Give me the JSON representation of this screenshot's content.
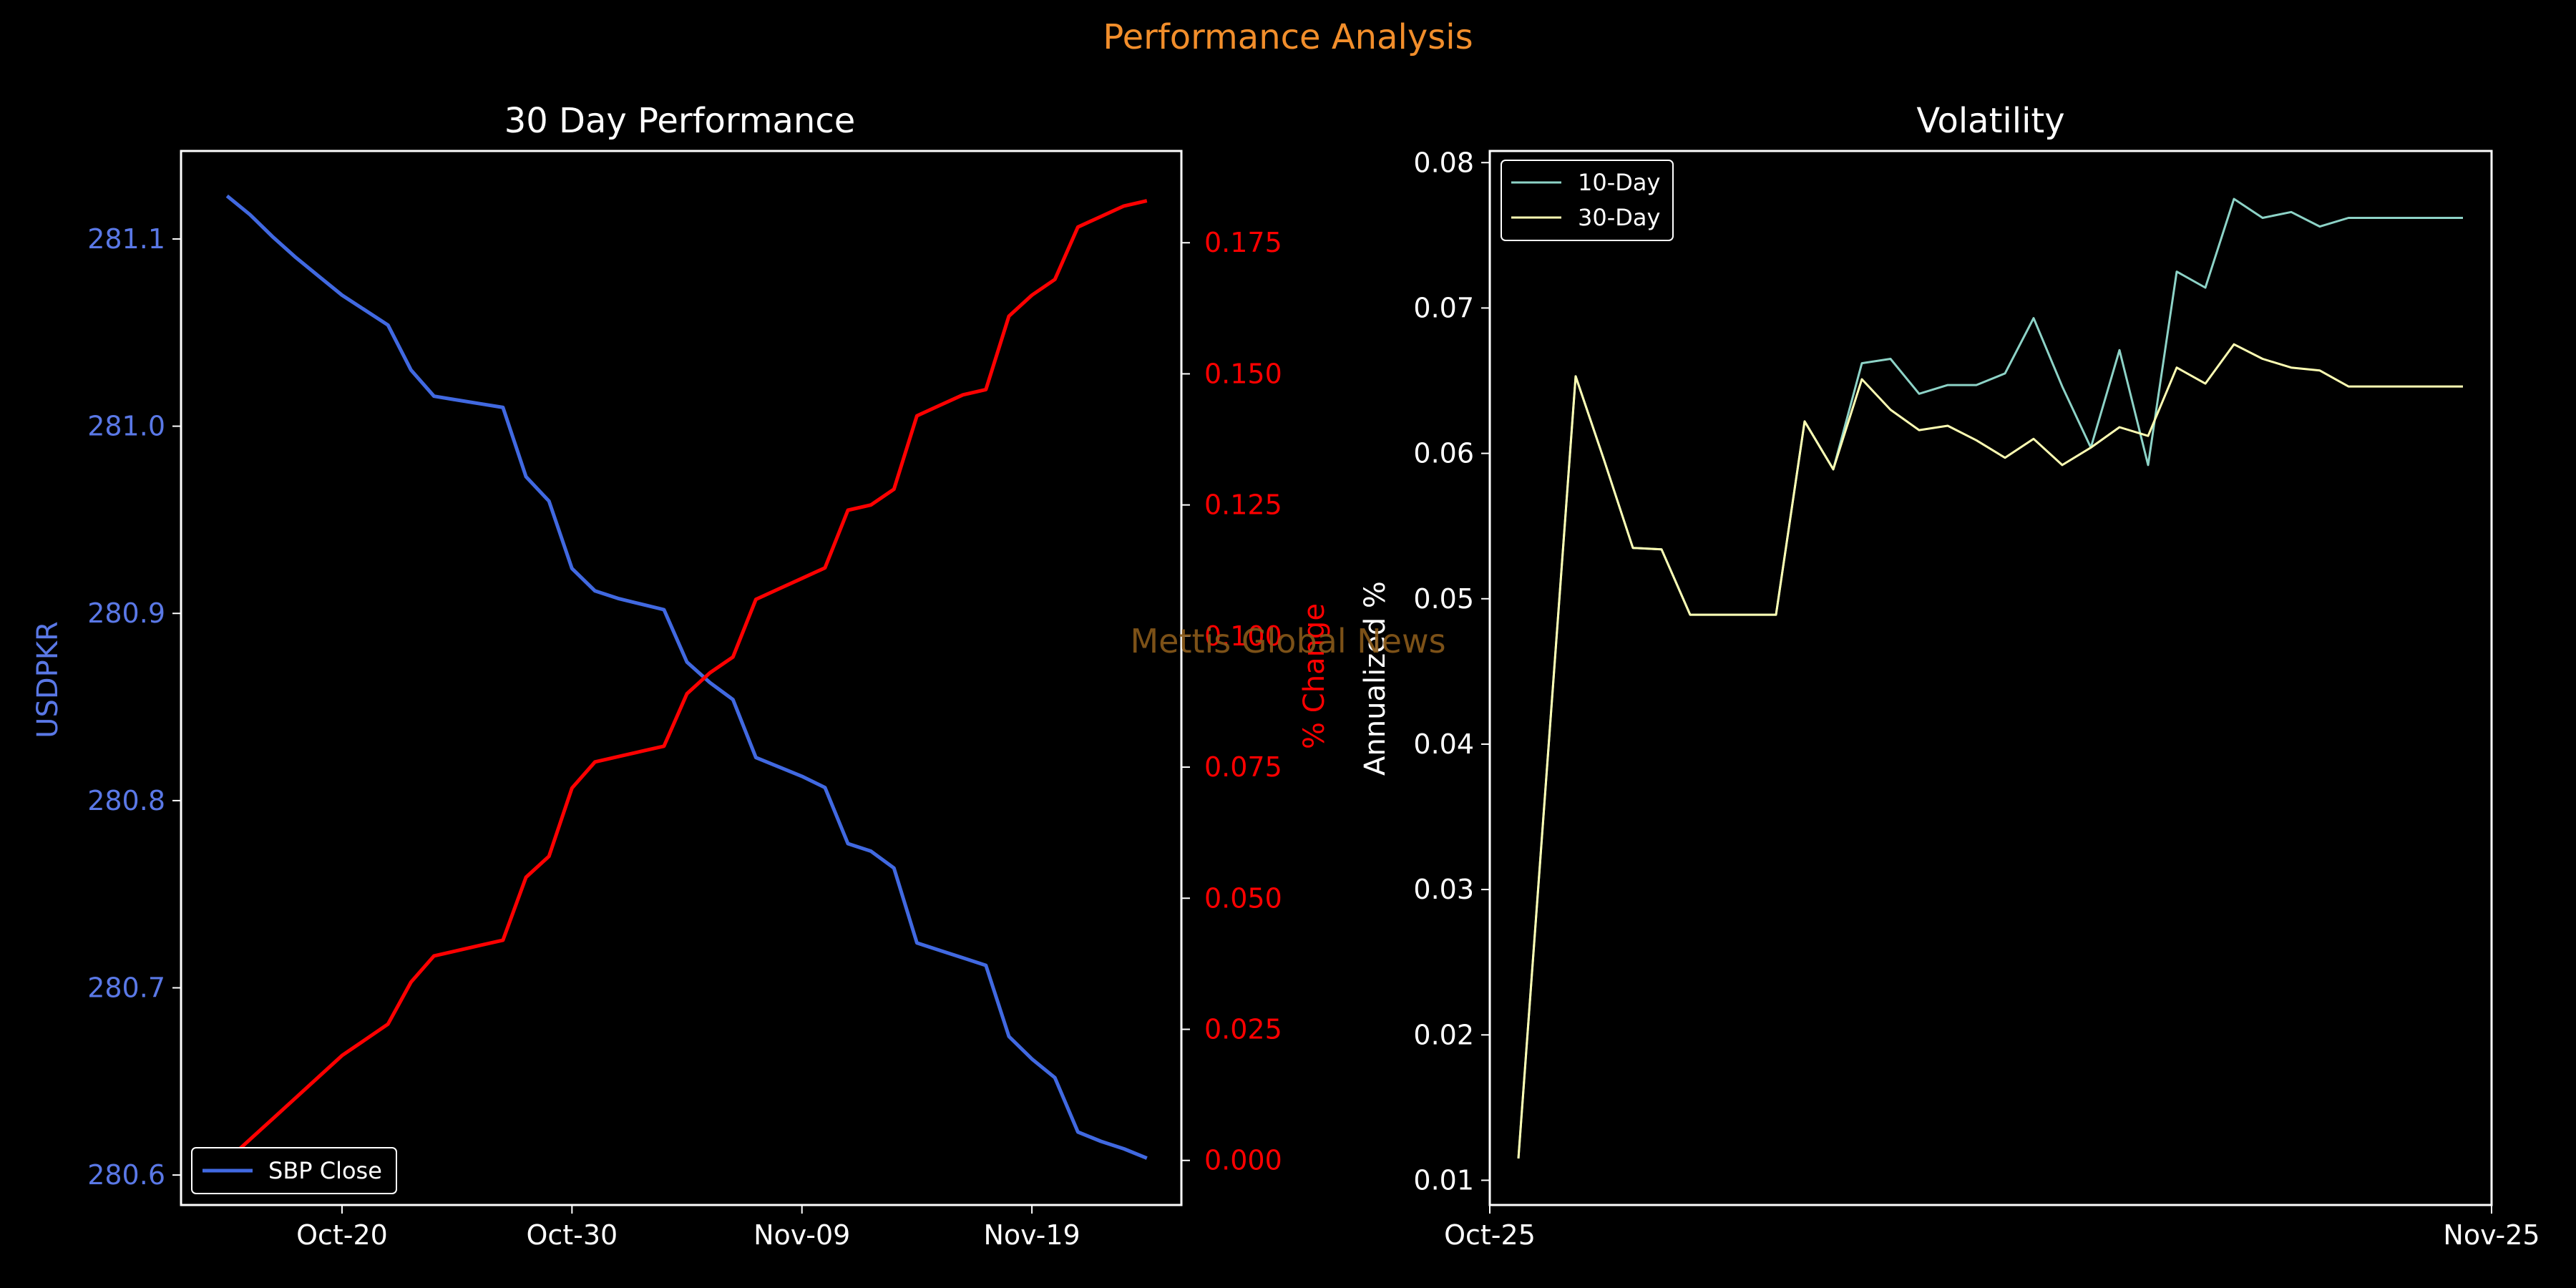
{
  "page_title": "Performance Analysis",
  "watermark": "Mettis Global News",
  "colors": {
    "background": "#000000",
    "title": "#f28e2b",
    "watermark": "#8a5a1a",
    "axis": "#ffffff",
    "price": "#4169e1",
    "price_tick": "#5a78e6",
    "pct": "#ff0000",
    "vol10": "#8dd3c7",
    "vol30": "#ffffb3"
  },
  "chart_data": [
    {
      "type": "line",
      "title": "30 Day Performance",
      "xlabel": "",
      "ylabel": "USDPKR",
      "y2label": "% Change",
      "x": [
        15,
        16,
        17,
        18,
        19,
        20,
        21,
        22,
        23,
        24,
        25,
        26,
        27,
        28,
        29,
        30,
        31,
        32,
        33,
        34,
        35,
        36,
        37,
        38,
        39,
        40,
        41,
        42,
        43,
        44,
        45,
        46,
        47,
        48,
        49,
        50,
        51,
        52,
        53,
        54,
        55
      ],
      "x_tick_positions": [
        20,
        30,
        40,
        50
      ],
      "x_tick_labels": [
        "Oct-20",
        "Oct-30",
        "Nov-09",
        "Nov-19"
      ],
      "xlim": [
        13,
        56.5
      ],
      "ylim": [
        280.584,
        281.147
      ],
      "y_ticks": [
        280.6,
        280.7,
        280.8,
        280.9,
        281.0,
        281.1
      ],
      "y_tick_labels": [
        "280.6",
        "280.7",
        "280.8",
        "280.9",
        "281.0",
        "281.1"
      ],
      "y2lim": [
        -0.0085,
        0.1925
      ],
      "y2_ticks": [
        0.0,
        0.025,
        0.05,
        0.075,
        0.1,
        0.125,
        0.15,
        0.175
      ],
      "y2_tick_labels": [
        "0.000",
        "0.025",
        "0.050",
        "0.075",
        "0.100",
        "0.125",
        "0.150",
        "0.175"
      ],
      "legend": {
        "position": "lower-left",
        "entries": [
          "SBP Close"
        ]
      },
      "series": [
        {
          "name": "SBP Close",
          "axis": "left",
          "values": [
            281.123,
            281.113,
            281.101,
            281.09,
            281.08,
            281.07,
            281.062,
            281.054,
            281.03,
            281.016,
            281.014,
            281.012,
            281.01,
            280.973,
            280.96,
            280.924,
            280.912,
            280.908,
            280.905,
            280.902,
            280.874,
            280.863,
            280.854,
            280.823,
            280.818,
            280.813,
            280.807,
            280.777,
            280.773,
            280.764,
            280.724,
            280.72,
            280.716,
            280.712,
            280.674,
            280.662,
            280.652,
            280.623,
            280.618,
            280.614,
            280.609
          ]
        },
        {
          "name": "% Change",
          "axis": "right",
          "values": [
            0.0,
            0.004,
            0.008,
            0.012,
            0.016,
            0.02,
            0.023,
            0.026,
            0.034,
            0.039,
            0.04,
            0.041,
            0.042,
            0.054,
            0.058,
            0.071,
            0.076,
            0.077,
            0.078,
            0.079,
            0.089,
            0.093,
            0.096,
            0.107,
            0.109,
            0.111,
            0.113,
            0.124,
            0.125,
            0.128,
            0.142,
            0.144,
            0.146,
            0.147,
            0.161,
            0.165,
            0.168,
            0.178,
            0.18,
            0.182,
            0.183
          ]
        }
      ]
    },
    {
      "type": "line",
      "title": "Volatility",
      "xlabel": "",
      "ylabel": "Annualized %",
      "x": [
        1,
        3,
        4,
        5,
        6,
        7,
        8,
        9,
        10,
        11,
        12,
        13,
        14,
        15,
        16,
        17,
        18,
        19,
        20,
        21,
        22,
        23,
        24,
        25,
        26,
        27,
        28,
        29,
        30,
        31,
        32,
        33,
        34
      ],
      "x_tick_positions": [
        0,
        35
      ],
      "x_tick_labels": [
        "Oct-25",
        "Nov-25"
      ],
      "xlim": [
        0,
        35
      ],
      "ylim": [
        0.0083,
        0.0808
      ],
      "y_ticks": [
        0.01,
        0.02,
        0.03,
        0.04,
        0.05,
        0.06,
        0.07,
        0.08
      ],
      "y_tick_labels": [
        "0.01",
        "0.02",
        "0.03",
        "0.04",
        "0.05",
        "0.06",
        "0.07",
        "0.08"
      ],
      "legend": {
        "position": "upper-left",
        "entries": [
          "10-Day",
          "30-Day"
        ]
      },
      "series": [
        {
          "name": "10-Day",
          "x": [
            1,
            3,
            4,
            5,
            6,
            7,
            8,
            9,
            10,
            11,
            12,
            13,
            14,
            15,
            16,
            17,
            18,
            19,
            20,
            21,
            22,
            23,
            24,
            25,
            26,
            27,
            28,
            29,
            30,
            31,
            32,
            33,
            34
          ],
          "values": [
            0.0115,
            0.0653,
            0.0595,
            0.0535,
            0.0534,
            0.0489,
            0.0489,
            0.0489,
            0.0489,
            0.0622,
            0.0589,
            0.0662,
            0.0665,
            0.0641,
            0.0647,
            0.0647,
            0.0655,
            0.0693,
            0.0646,
            0.0604,
            0.0671,
            0.0592,
            0.0725,
            0.0714,
            0.0775,
            0.0762,
            0.0766,
            0.0756,
            0.0762,
            0.0762,
            0.0762,
            0.0762,
            0.0762
          ]
        },
        {
          "name": "30-Day",
          "x": [
            1,
            3,
            4,
            5,
            6,
            7,
            8,
            9,
            10,
            11,
            12,
            13,
            14,
            15,
            16,
            17,
            18,
            19,
            20,
            21,
            22,
            23,
            24,
            25,
            26,
            27,
            28,
            29,
            30,
            31,
            32,
            33,
            34
          ],
          "values": [
            0.0115,
            0.0653,
            0.0595,
            0.0535,
            0.0534,
            0.0489,
            0.0489,
            0.0489,
            0.0489,
            0.0622,
            0.0589,
            0.0651,
            0.063,
            0.0616,
            0.0619,
            0.0609,
            0.0597,
            0.061,
            0.0592,
            0.0604,
            0.0618,
            0.0612,
            0.0659,
            0.0648,
            0.0675,
            0.0665,
            0.0659,
            0.0657,
            0.0646,
            0.0646,
            0.0646,
            0.0646,
            0.0646
          ]
        }
      ]
    }
  ]
}
